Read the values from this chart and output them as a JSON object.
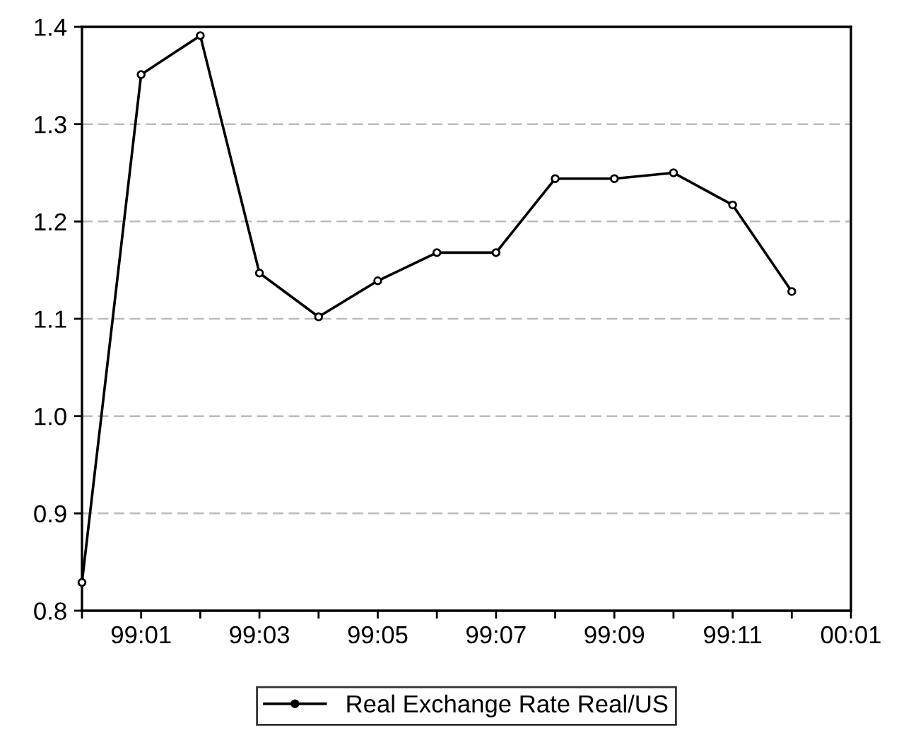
{
  "chart_data": {
    "type": "line",
    "categories": [
      null,
      "99:01",
      null,
      "99:03",
      null,
      "99:05",
      null,
      "99:07",
      null,
      "99:09",
      null,
      "99:11",
      null,
      "00:01"
    ],
    "series": [
      {
        "name": "Real Exchange Rate Real/US",
        "color": "#000000",
        "values": [
          0.829,
          1.351,
          1.391,
          1.147,
          1.102,
          1.139,
          1.168,
          1.168,
          1.244,
          1.244,
          1.25,
          1.217,
          1.128,
          null
        ]
      }
    ],
    "ylim": [
      0.8,
      1.4
    ],
    "yticks": [
      0.8,
      0.9,
      {
        "value": 1,
        "label": "1.0"
      },
      1.1,
      1.2,
      1.3,
      1.4
    ],
    "grid": "y",
    "legend": "bottom",
    "marker": "circle",
    "line_style": "solid"
  }
}
